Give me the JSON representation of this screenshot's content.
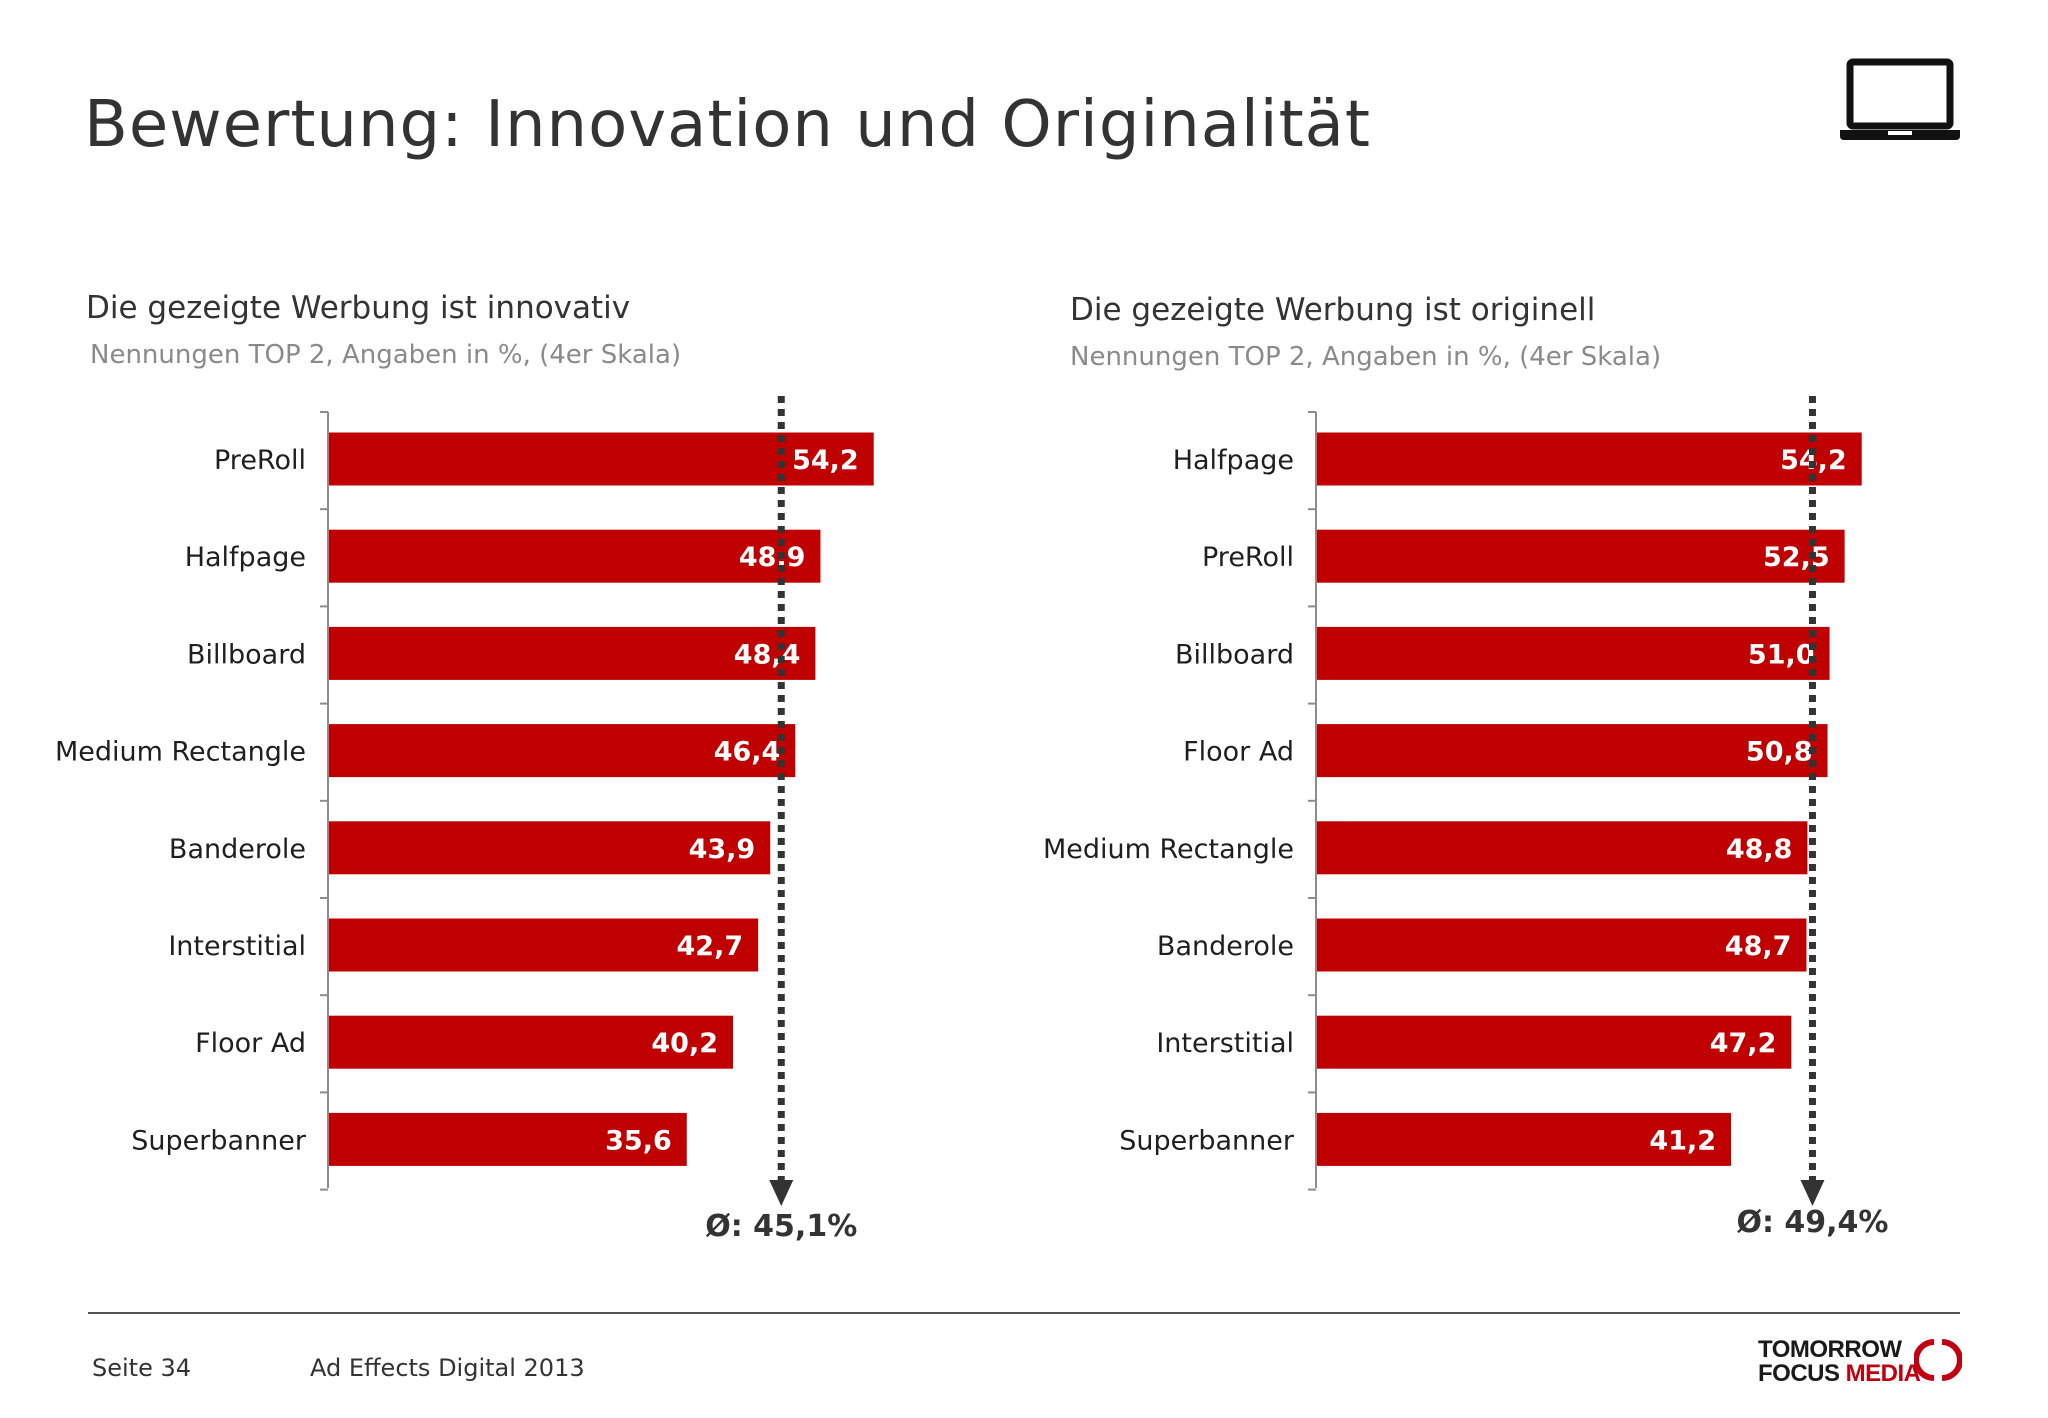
{
  "header": {
    "title": "Bewertung: Innovation und Originalität",
    "device_icon": "laptop-icon"
  },
  "colors": {
    "bar": "#c00000",
    "axis": "#8c8c8c",
    "average_line": "#333333"
  },
  "chart_data": [
    {
      "type": "bar",
      "orientation": "horizontal",
      "title": "Die gezeigte Werbung ist innovativ",
      "subtitle": "Nennungen TOP 2, Angaben in %, (4er Skala)",
      "categories": [
        "PreRoll",
        "Halfpage",
        "Billboard",
        "Medium Rectangle",
        "Banderole",
        "Interstitial",
        "Floor Ad",
        "Superbanner"
      ],
      "values": [
        54.2,
        48.9,
        48.4,
        46.4,
        43.9,
        42.7,
        40.2,
        35.6
      ],
      "value_labels": [
        "54,2",
        "48,9",
        "48,4",
        "46,4",
        "43,9",
        "42,7",
        "40,2",
        "35,6"
      ],
      "xlim": [
        0,
        100
      ],
      "average": 45.1,
      "average_label": "Ø: 45,1%"
    },
    {
      "type": "bar",
      "orientation": "horizontal",
      "title": "Die gezeigte Werbung ist originell",
      "subtitle": "Nennungen TOP 2, Angaben in %, (4er Skala)",
      "categories": [
        "Halfpage",
        "PreRoll",
        "Billboard",
        "Floor Ad",
        "Medium Rectangle",
        "Banderole",
        "Interstitial",
        "Superbanner"
      ],
      "values": [
        54.2,
        52.5,
        51.0,
        50.8,
        48.8,
        48.7,
        47.2,
        41.2
      ],
      "value_labels": [
        "54,2",
        "52,5",
        "51,0",
        "50,8",
        "48,8",
        "48,7",
        "47,2",
        "41,2"
      ],
      "xlim": [
        0,
        100
      ],
      "average": 49.4,
      "average_label": "Ø: 49,4%"
    }
  ],
  "footer": {
    "page": "Seite 34",
    "study": "Ad Effects Digital 2013",
    "logo_line1": "TOMORROW",
    "logo_line2_a": "FOCUS",
    "logo_line2_b": "MEDIA"
  }
}
